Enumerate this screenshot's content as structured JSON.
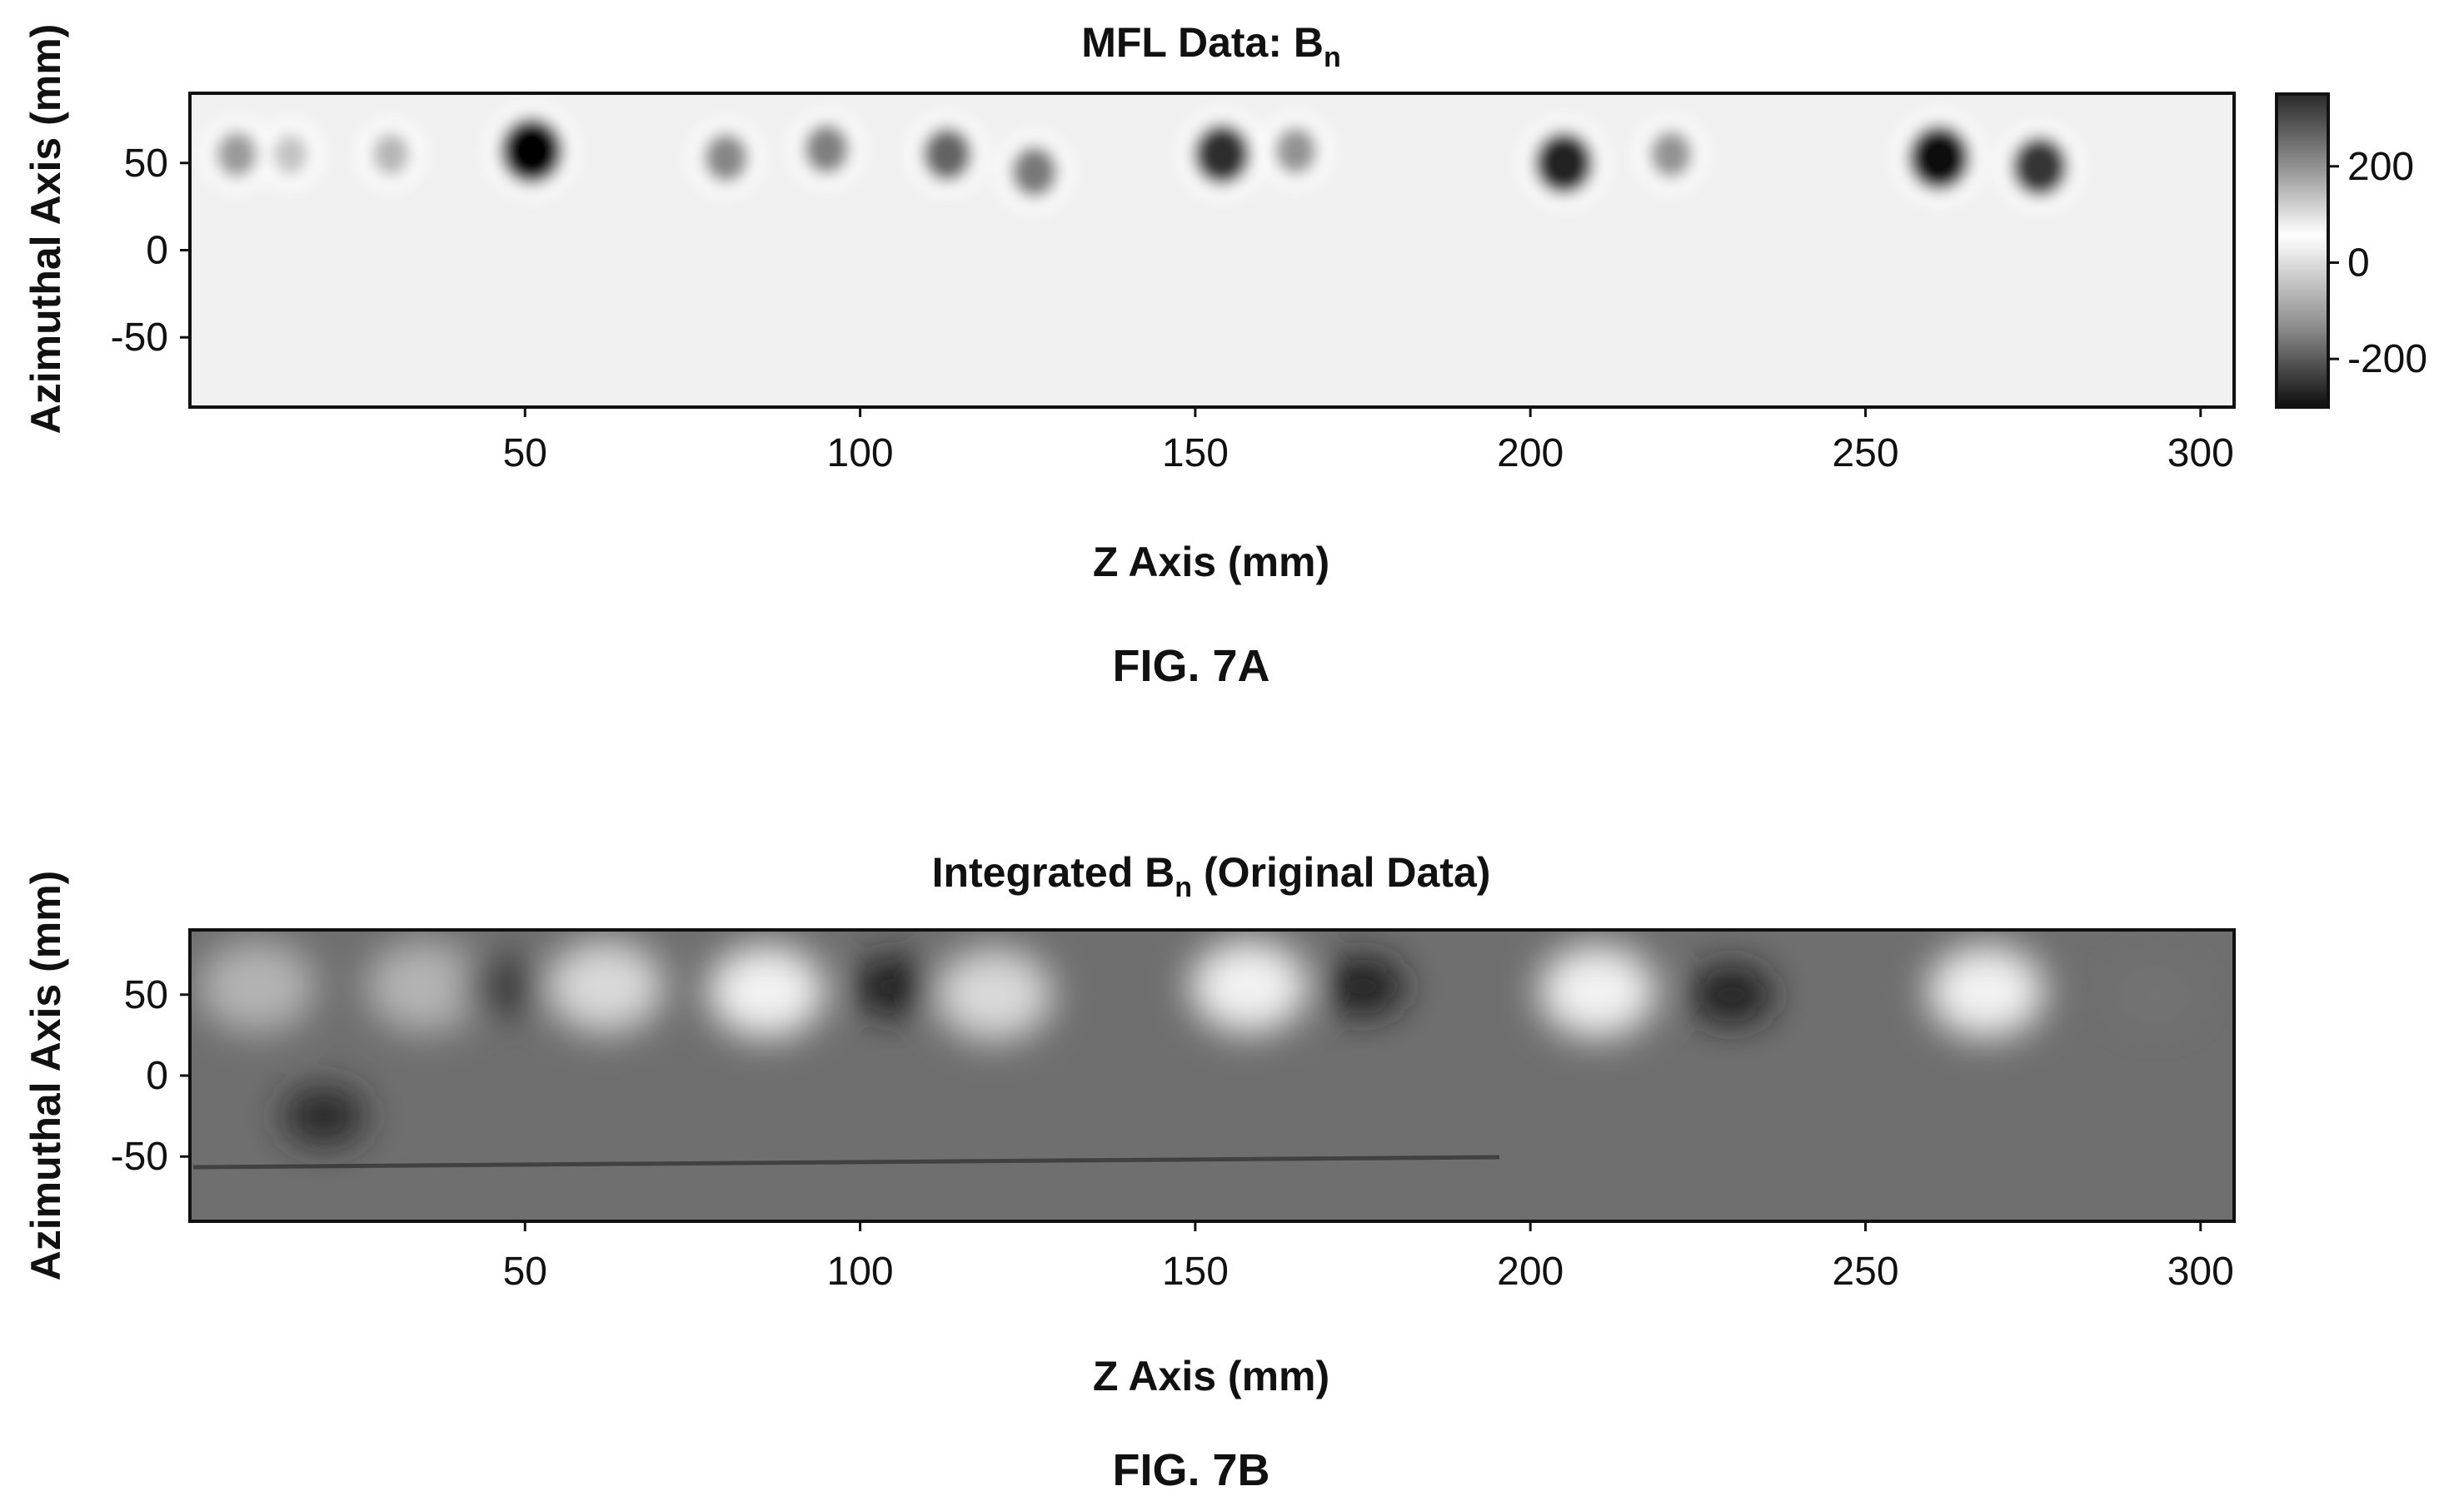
{
  "figures": [
    {
      "fig_label": "FIG. 7A",
      "title": {
        "main": "MFL Data: B",
        "sub": "n"
      },
      "xlabel": "Z Axis (mm)",
      "ylabel": "Azimuthal Axis (mm)"
    },
    {
      "fig_label": "FIG. 7B",
      "title": {
        "main": "Integrated B",
        "sub": "n",
        "tail": " (Original Data)"
      },
      "xlabel": "Z Axis (mm)",
      "ylabel": "Azimuthal Axis (mm)"
    }
  ],
  "chart_data": [
    {
      "type": "heatmap",
      "xlim": [
        0,
        305
      ],
      "ylim": [
        -90,
        90
      ],
      "xticks": [
        50,
        100,
        150,
        200,
        250,
        300
      ],
      "yticks": [
        50,
        0,
        -50
      ],
      "colorbar": {
        "ticks": [
          200,
          0,
          -200
        ],
        "range": [
          -300,
          350
        ],
        "colormap": "grayscale"
      },
      "background": 0,
      "features": [
        {
          "x": 7,
          "y": 55,
          "value": 120
        },
        {
          "x": 15,
          "y": 55,
          "value": 60
        },
        {
          "x": 30,
          "y": 55,
          "value": 80
        },
        {
          "x": 51,
          "y": 57,
          "value": 340
        },
        {
          "x": 80,
          "y": 53,
          "value": 150
        },
        {
          "x": 95,
          "y": 58,
          "value": 160
        },
        {
          "x": 113,
          "y": 55,
          "value": 200
        },
        {
          "x": 126,
          "y": 45,
          "value": 170
        },
        {
          "x": 154,
          "y": 55,
          "value": 280
        },
        {
          "x": 165,
          "y": 57,
          "value": 130
        },
        {
          "x": 205,
          "y": 50,
          "value": 300
        },
        {
          "x": 221,
          "y": 55,
          "value": 130
        },
        {
          "x": 261,
          "y": 53,
          "value": 330
        },
        {
          "x": 276,
          "y": 48,
          "value": 270
        }
      ]
    },
    {
      "type": "heatmap",
      "xlim": [
        0,
        305
      ],
      "ylim": [
        -90,
        90
      ],
      "xticks": [
        50,
        100,
        150,
        200,
        250,
        300
      ],
      "yticks": [
        50,
        0,
        -50
      ],
      "colormap": "grayscale",
      "background": 0.5,
      "features": [
        {
          "x": 10,
          "y": 55,
          "value": 0.7
        },
        {
          "x": 20,
          "y": -25,
          "value": 0.15
        },
        {
          "x": 35,
          "y": 55,
          "value": 0.7
        },
        {
          "x": 47,
          "y": 55,
          "value": 0.25
        },
        {
          "x": 62,
          "y": 55,
          "value": 0.85
        },
        {
          "x": 86,
          "y": 52,
          "value": 0.95
        },
        {
          "x": 105,
          "y": 55,
          "value": 0.1
        },
        {
          "x": 120,
          "y": 50,
          "value": 0.85
        },
        {
          "x": 158,
          "y": 55,
          "value": 0.95
        },
        {
          "x": 175,
          "y": 55,
          "value": 0.1
        },
        {
          "x": 210,
          "y": 52,
          "value": 0.95
        },
        {
          "x": 230,
          "y": 50,
          "value": 0.1
        },
        {
          "x": 268,
          "y": 52,
          "value": 0.95
        },
        {
          "x": 293,
          "y": 50,
          "value": 0.45
        }
      ]
    }
  ]
}
